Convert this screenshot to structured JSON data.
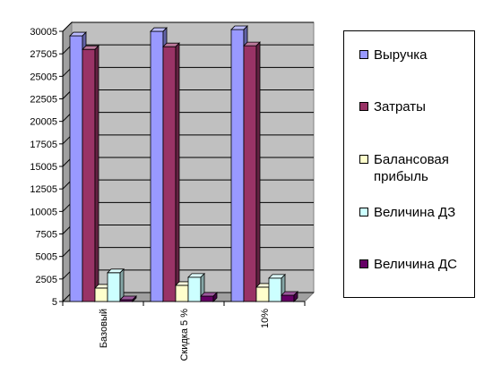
{
  "chart_data": {
    "type": "bar",
    "categories": [
      "Базовый",
      "Скидка 5 %",
      "10%"
    ],
    "series": [
      {
        "name": "Выручка",
        "color": "#9999ff",
        "values": [
          29500,
          30000,
          30200
        ]
      },
      {
        "name": "Затраты",
        "color": "#993366",
        "values": [
          28000,
          28300,
          28400
        ]
      },
      {
        "name": "Балансовая прибыль",
        "color": "#ffffcc",
        "values": [
          1500,
          1800,
          1600
        ]
      },
      {
        "name": "Величина ДЗ",
        "color": "#ccffff",
        "values": [
          3200,
          2700,
          2600
        ]
      },
      {
        "name": "Величина ДС",
        "color": "#660066",
        "values": [
          200,
          600,
          700
        ]
      }
    ],
    "yticks": [
      "5",
      "2505",
      "5005",
      "7505",
      "10005",
      "12505",
      "15005",
      "17505",
      "20005",
      "22505",
      "25005",
      "27505",
      "30005"
    ],
    "ylim": [
      5,
      30005
    ],
    "grid": true,
    "plot_background": "#c0c0c0",
    "legend_position": "right"
  }
}
